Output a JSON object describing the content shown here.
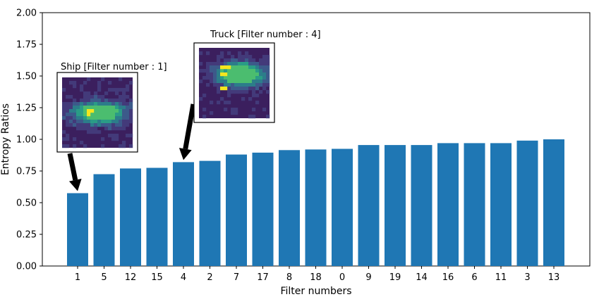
{
  "chart_data": {
    "type": "bar",
    "categories": [
      "1",
      "5",
      "12",
      "15",
      "4",
      "2",
      "7",
      "17",
      "8",
      "18",
      "0",
      "9",
      "19",
      "14",
      "16",
      "6",
      "11",
      "3",
      "13"
    ],
    "values": [
      0.575,
      0.725,
      0.77,
      0.775,
      0.82,
      0.83,
      0.88,
      0.895,
      0.915,
      0.92,
      0.925,
      0.955,
      0.955,
      0.955,
      0.97,
      0.97,
      0.97,
      0.99,
      1.0
    ],
    "xlabel": "Filter numbers",
    "ylabel": "Entropy Ratios",
    "ylim": [
      0,
      2.0
    ],
    "yticks": [
      "0.00",
      "0.25",
      "0.50",
      "0.75",
      "1.00",
      "1.25",
      "1.50",
      "1.75",
      "2.00"
    ],
    "grid": false,
    "bar_color": "#1f77b4",
    "annotations": [
      {
        "label": "Ship [Filter number : 1]",
        "category": "1",
        "image": "ship-feature-map"
      },
      {
        "label": "Truck [Filter number : 4]",
        "category": "4",
        "image": "truck-feature-map"
      }
    ]
  }
}
